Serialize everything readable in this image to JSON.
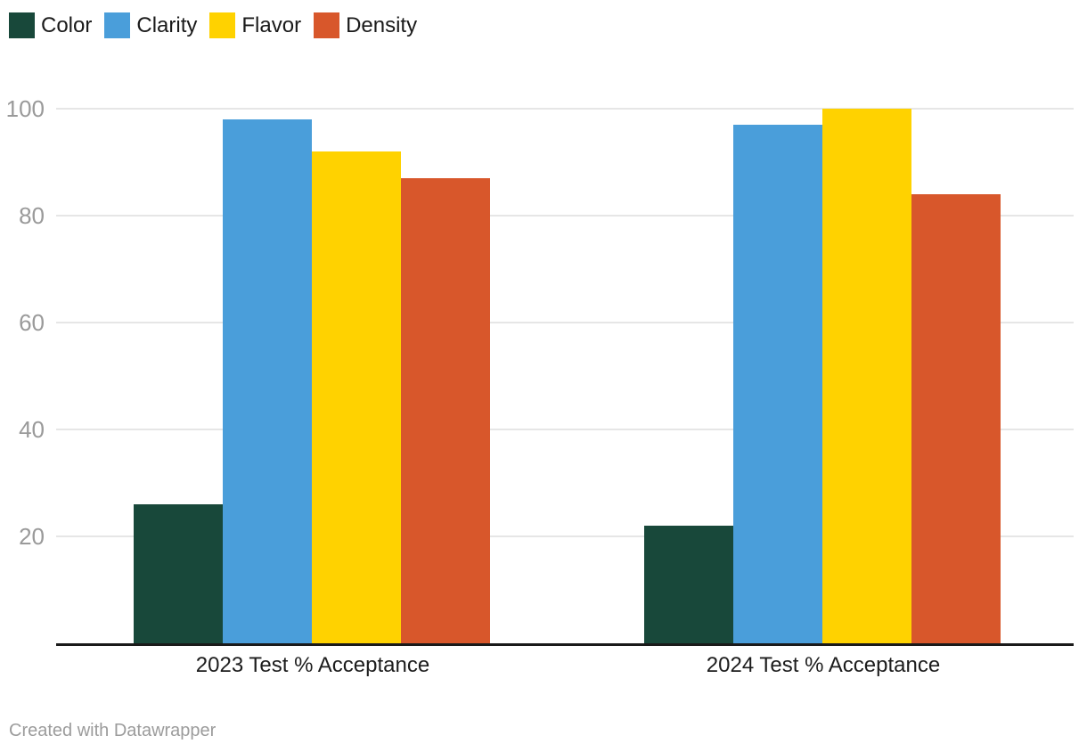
{
  "legend": {
    "items": [
      {
        "label": "Color",
        "color": "#18483a"
      },
      {
        "label": "Clarity",
        "color": "#4a9eda"
      },
      {
        "label": "Flavor",
        "color": "#ffd200"
      },
      {
        "label": "Density",
        "color": "#d8572b"
      }
    ]
  },
  "footer": {
    "attribution": "Created with Datawrapper"
  },
  "chart_data": {
    "type": "bar",
    "title": "",
    "categories": [
      "2023 Test % Acceptance",
      "2024 Test % Acceptance"
    ],
    "series": [
      {
        "name": "Color",
        "color": "#18483a",
        "values": [
          26,
          22
        ]
      },
      {
        "name": "Clarity",
        "color": "#4a9eda",
        "values": [
          98,
          97
        ]
      },
      {
        "name": "Flavor",
        "color": "#ffd200",
        "values": [
          92,
          100
        ]
      },
      {
        "name": "Density",
        "color": "#d8572b",
        "values": [
          87,
          84
        ]
      }
    ],
    "xlabel": "",
    "ylabel": "",
    "ylim": [
      0,
      100
    ],
    "yticks": [
      20,
      40,
      60,
      80,
      100
    ],
    "grid": true,
    "legend_position": "top-left",
    "colors": {
      "gridline": "#e6e6e6",
      "axis_line": "#1a1a1a",
      "tick_label": "#9a9a9a",
      "category_label": "#1d1d1d"
    },
    "attribution": "Created with Datawrapper"
  }
}
